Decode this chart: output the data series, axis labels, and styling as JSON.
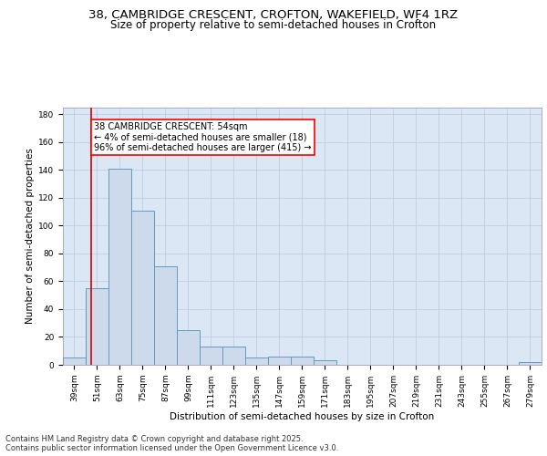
{
  "title_line1": "38, CAMBRIDGE CRESCENT, CROFTON, WAKEFIELD, WF4 1RZ",
  "title_line2": "Size of property relative to semi-detached houses in Crofton",
  "xlabel": "Distribution of semi-detached houses by size in Crofton",
  "ylabel": "Number of semi-detached properties",
  "bar_color": "#ccdaeb",
  "bar_edge_color": "#6699bb",
  "background_color": "#dce7f5",
  "grid_color": "#c0cce0",
  "annotation_text": "38 CAMBRIDGE CRESCENT: 54sqm\n← 4% of semi-detached houses are smaller (18)\n96% of semi-detached houses are larger (415) →",
  "vline_x": 54,
  "vline_color": "#cc0000",
  "categories": [
    "39sqm",
    "51sqm",
    "63sqm",
    "75sqm",
    "87sqm",
    "99sqm",
    "111sqm",
    "123sqm",
    "135sqm",
    "147sqm",
    "159sqm",
    "171sqm",
    "183sqm",
    "195sqm",
    "207sqm",
    "219sqm",
    "231sqm",
    "243sqm",
    "255sqm",
    "267sqm",
    "279sqm"
  ],
  "bin_edges": [
    39,
    51,
    63,
    75,
    87,
    99,
    111,
    123,
    135,
    147,
    159,
    171,
    183,
    195,
    207,
    219,
    231,
    243,
    255,
    267,
    279,
    291
  ],
  "values": [
    5,
    55,
    141,
    111,
    71,
    25,
    13,
    13,
    5,
    6,
    6,
    3,
    0,
    0,
    0,
    0,
    0,
    0,
    0,
    0,
    2
  ],
  "ylim": [
    0,
    185
  ],
  "yticks": [
    0,
    20,
    40,
    60,
    80,
    100,
    120,
    140,
    160,
    180
  ],
  "footer_line1": "Contains HM Land Registry data © Crown copyright and database right 2025.",
  "footer_line2": "Contains public sector information licensed under the Open Government Licence v3.0.",
  "title_fontsize": 9.5,
  "subtitle_fontsize": 8.5,
  "axis_label_fontsize": 7.5,
  "tick_fontsize": 6.5,
  "footer_fontsize": 6.0,
  "annotation_fontsize": 7.0
}
